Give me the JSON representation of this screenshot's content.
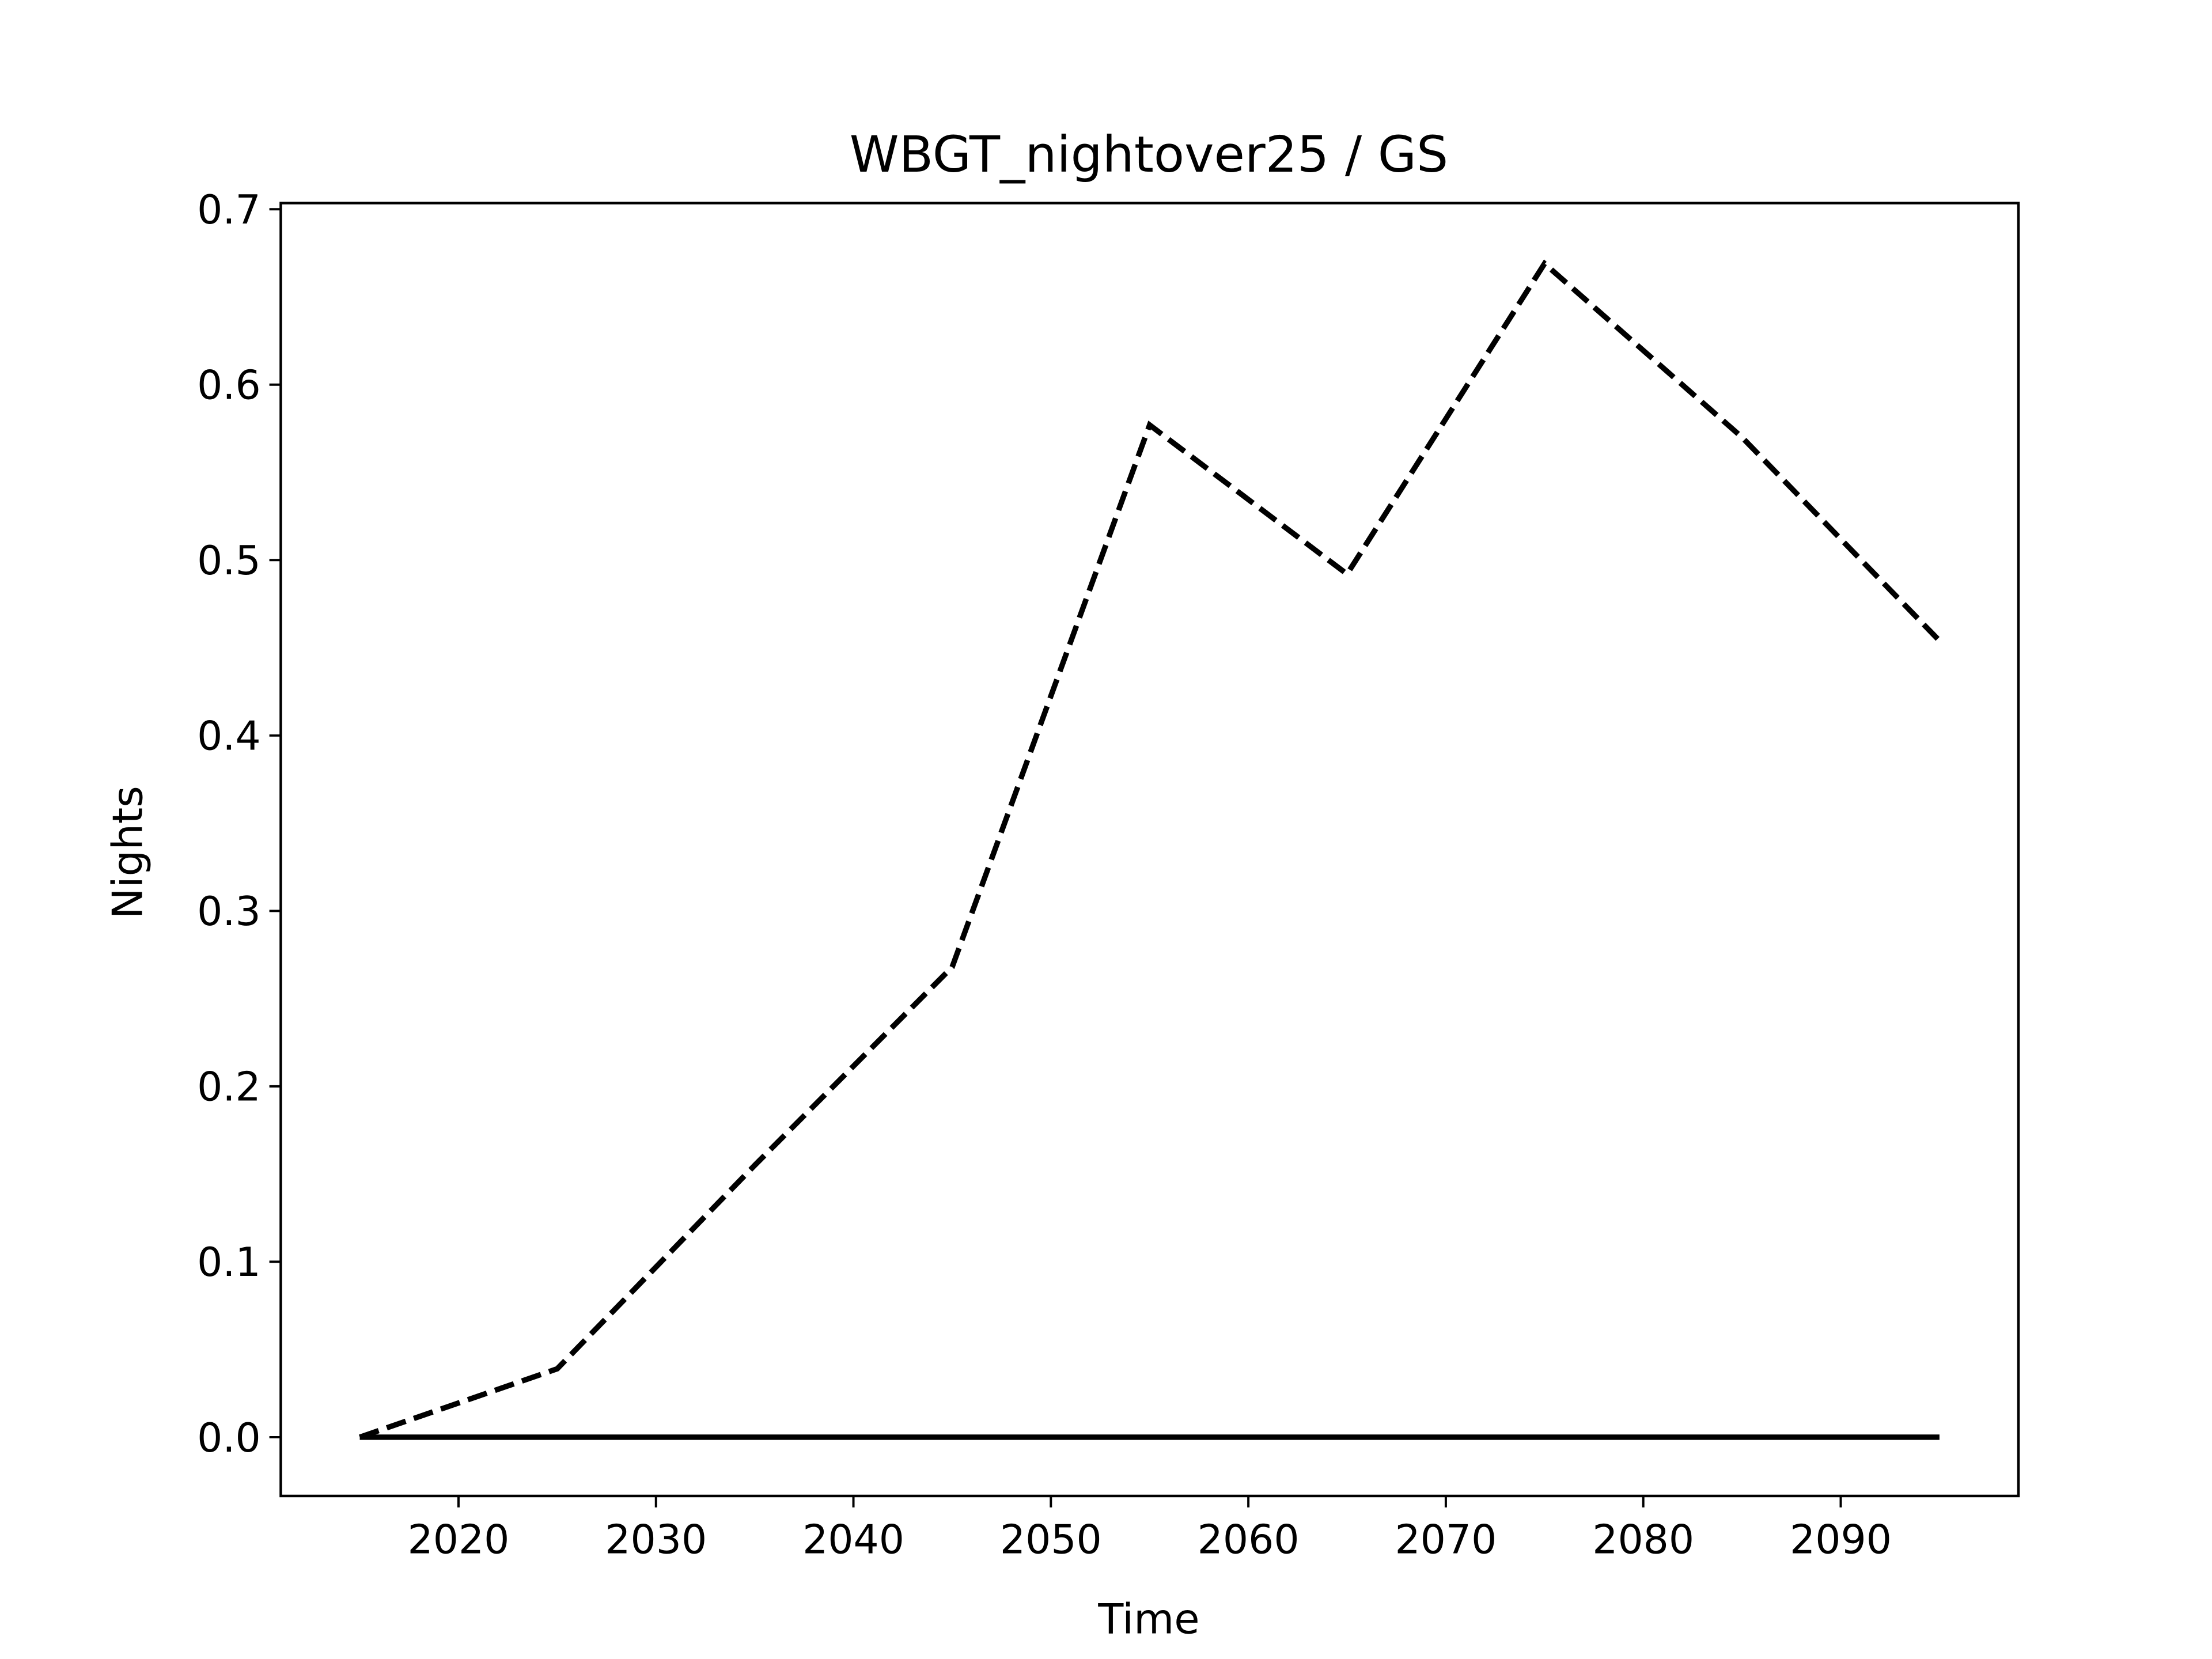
{
  "chart_data": {
    "type": "line",
    "title": "WBGT_nightover25 / GS",
    "xlabel": "Time",
    "ylabel": "Nights",
    "x": [
      2015,
      2025,
      2035,
      2045,
      2055,
      2065,
      2075,
      2085,
      2095
    ],
    "series": [
      {
        "color": "#000000",
        "linestyle": "dashed",
        "values": [
          0.0,
          0.039,
          0.155,
          0.268,
          0.577,
          0.492,
          0.669,
          0.57,
          0.454
        ]
      },
      {
        "color": "#000000",
        "linestyle": "solid",
        "values": [
          0,
          0,
          0,
          0,
          0,
          0,
          0,
          0,
          0
        ]
      }
    ],
    "xlim": [
      2011,
      2099
    ],
    "xticks": [
      2020,
      2030,
      2040,
      2050,
      2060,
      2070,
      2080,
      2090
    ],
    "ylim": [
      -0.0335,
      0.7035
    ],
    "yticks": [
      {
        "value": 0,
        "label": "0.0"
      },
      0.1,
      0.2,
      0.3,
      0.4,
      0.5,
      0.6,
      0.7
    ],
    "grid": false
  }
}
